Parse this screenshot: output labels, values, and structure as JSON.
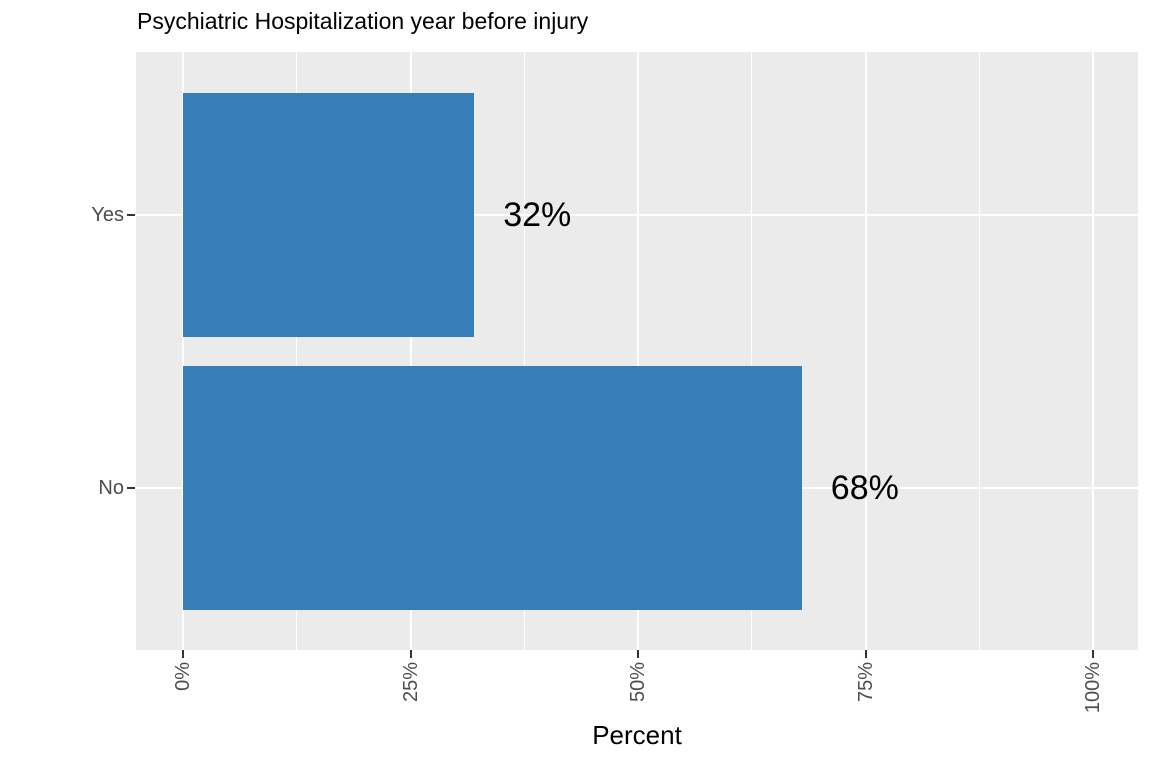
{
  "chart_data": {
    "type": "bar",
    "orientation": "horizontal",
    "title": "Psychiatric Hospitalization year before injury",
    "xlabel": "Percent",
    "ylabel": "",
    "categories": [
      "Yes",
      "No"
    ],
    "values": [
      32,
      68
    ],
    "value_labels": [
      "32%",
      "68%"
    ],
    "xlim": [
      0,
      100
    ],
    "x_ticks": [
      {
        "value": 0,
        "label": "0%"
      },
      {
        "value": 25,
        "label": "25%"
      },
      {
        "value": 50,
        "label": "50%"
      },
      {
        "value": 75,
        "label": "75%"
      },
      {
        "value": 100,
        "label": "100%"
      }
    ],
    "x_minor_ticks": [
      12.5,
      37.5,
      62.5,
      87.5
    ],
    "x_tick_label_rotation_deg": -90,
    "grid": true,
    "legend": "none",
    "bar_color": "#377EB8",
    "panel_background": "#EBEBEB",
    "grid_color": "#FFFFFF",
    "tick_mark_color": "#333333",
    "axis_text_color": "#4D4D4D",
    "title_color": "#000000",
    "value_label_color": "#000000"
  }
}
